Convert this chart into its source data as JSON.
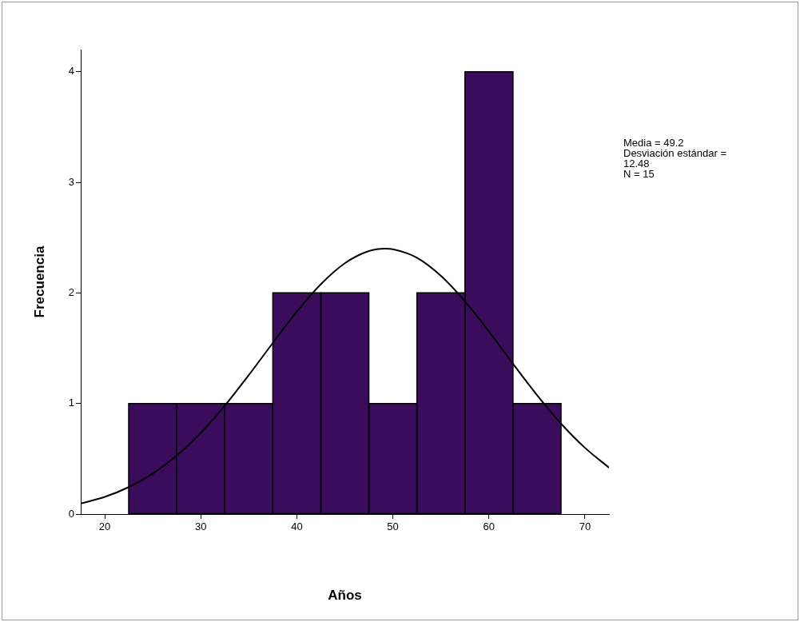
{
  "chart_data": {
    "type": "histogram",
    "xlabel": "Años",
    "ylabel": "Frecuencia",
    "bins": [
      22.5,
      27.5,
      32.5,
      37.5,
      42.5,
      47.5,
      52.5,
      57.5,
      62.5,
      67.5
    ],
    "values": [
      1,
      1,
      1,
      2,
      2,
      1,
      2,
      4,
      1
    ],
    "color": "#3c0c5c",
    "series": [
      {
        "type": "line",
        "color": "#000000",
        "x": [
          17.5,
          20,
          22.5,
          25,
          27.5,
          30,
          32.5,
          35,
          37.5,
          40,
          42.5,
          45,
          47.5,
          49.2,
          50,
          52.5,
          55,
          57.5,
          60,
          62.5,
          65,
          67.5,
          70,
          72.5
        ],
        "values": [
          0.095,
          0.155,
          0.244,
          0.366,
          0.529,
          0.735,
          0.98,
          1.257,
          1.547,
          1.829,
          2.078,
          2.268,
          2.378,
          2.4,
          2.395,
          2.318,
          2.154,
          1.924,
          1.651,
          1.36,
          1.077,
          0.819,
          0.599,
          0.42
        ]
      }
    ],
    "xlim": [
      17.5,
      72.5
    ],
    "xticks": [
      20,
      30,
      40,
      50,
      60,
      70
    ],
    "ylim": [
      0,
      4.2
    ],
    "yticks": [
      0,
      1,
      2,
      3,
      4
    ],
    "grid": false,
    "legend": false,
    "marker": "none",
    "line_style": "solid",
    "annotations": [
      "Media = 49.2",
      "Desviación estándar = 12.48",
      "N = 15"
    ]
  }
}
